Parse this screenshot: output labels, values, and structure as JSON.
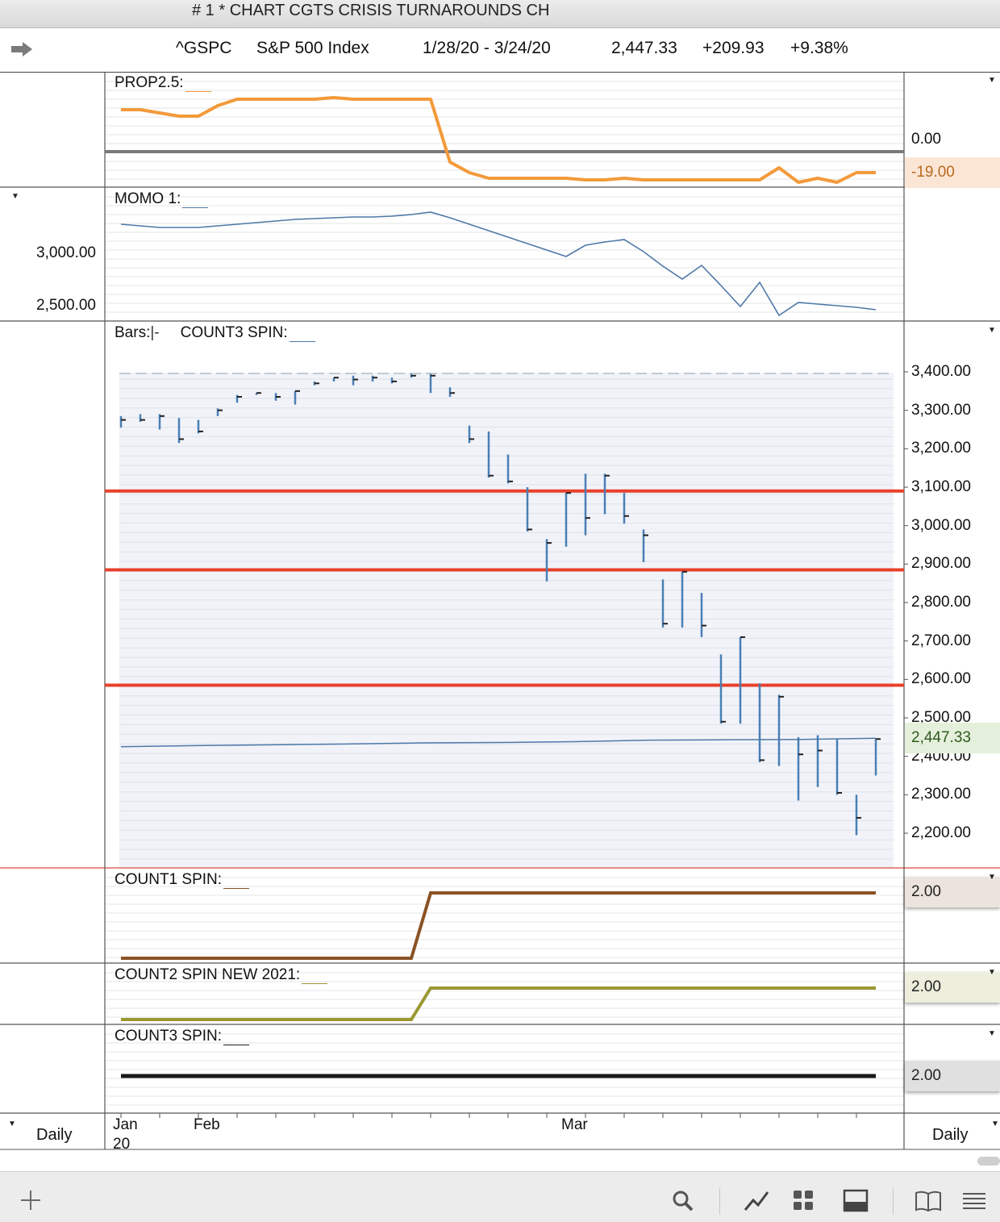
{
  "window": {
    "title": "# 1 * CHART CGTS CRISIS TURNAROUNDS CH"
  },
  "info": {
    "symbol": "^GSPC",
    "name": "S&P 500 Index",
    "range": "1/28/20 - 3/24/20",
    "last": "2,447.33",
    "change": "+209.93",
    "pct": "+9.38%"
  },
  "panels": {
    "prop": {
      "label": "PROP2.5:",
      "axis": "0.00",
      "tag": "-19.00"
    },
    "momo": {
      "label": "MOMO 1:",
      "axis": [
        "3,000.00",
        "2,500.00"
      ]
    },
    "price": {
      "label_bars": "Bars:",
      "bars_sym": "|-",
      "label_count": "COUNT3 SPIN:",
      "tag": "2,447.33",
      "axis": [
        "3,400.00",
        "3,300.00",
        "3,200.00",
        "3,100.00",
        "3,000.00",
        "2,900.00",
        "2,800.00",
        "2,700.00",
        "2,600.00",
        "2,500.00",
        "2,400.00",
        "2,300.00",
        "2,200.00"
      ]
    },
    "count1": {
      "label": "COUNT1 SPIN:",
      "tag": "2.00"
    },
    "count2": {
      "label": "COUNT2 SPIN NEW 2021:",
      "tag": "2.00"
    },
    "count3": {
      "label": "COUNT3 SPIN:",
      "tag": "2.00"
    }
  },
  "footer": {
    "left": "Daily",
    "right": "Daily",
    "months": [
      "Jan",
      "Feb",
      "Mar"
    ],
    "year": "20"
  },
  "colors": {
    "prop": "#f39a3a",
    "momo": "#4f78a8",
    "bar": "#4a7fb5",
    "level": "#e8402a",
    "count1": "#8a5324",
    "count2": "#9a9832",
    "count3": "#1a1a1a"
  },
  "icons": [
    "add-icon",
    "search-icon",
    "chart-line-icon",
    "grid-icon",
    "panel-icon",
    "book-icon",
    "menu-icon"
  ],
  "chart_data": {
    "type": "bar",
    "title": "",
    "xlabel": "",
    "ylabel": "",
    "ylim": [
      2150,
      3420
    ],
    "levels": [
      3090,
      2885,
      2585
    ],
    "series": [
      {
        "type": "ohlc",
        "bars": [
          {
            "h": 3285,
            "l": 3255,
            "c": 3275
          },
          {
            "h": 3290,
            "l": 3270,
            "c": 3275
          },
          {
            "h": 3290,
            "l": 3250,
            "c": 3285
          },
          {
            "h": 3280,
            "l": 3215,
            "c": 3225
          },
          {
            "h": 3275,
            "l": 3240,
            "c": 3245
          },
          {
            "h": 3305,
            "l": 3285,
            "c": 3300
          },
          {
            "h": 3340,
            "l": 3320,
            "c": 3335
          },
          {
            "h": 3345,
            "l": 3340,
            "c": 3345
          },
          {
            "h": 3345,
            "l": 3325,
            "c": 3335
          },
          {
            "h": 3350,
            "l": 3315,
            "c": 3350
          },
          {
            "h": 3375,
            "l": 3365,
            "c": 3370
          },
          {
            "h": 3385,
            "l": 3375,
            "c": 3385
          },
          {
            "h": 3390,
            "l": 3365,
            "c": 3380
          },
          {
            "h": 3390,
            "l": 3375,
            "c": 3385
          },
          {
            "h": 3385,
            "l": 3370,
            "c": 3375
          },
          {
            "h": 3395,
            "l": 3385,
            "c": 3390
          },
          {
            "h": 3395,
            "l": 3345,
            "c": 3390
          },
          {
            "h": 3360,
            "l": 3335,
            "c": 3345
          },
          {
            "h": 3260,
            "l": 3215,
            "c": 3225
          },
          {
            "h": 3245,
            "l": 3125,
            "c": 3130
          },
          {
            "h": 3185,
            "l": 3110,
            "c": 3115
          },
          {
            "h": 3100,
            "l": 2985,
            "c": 2990
          },
          {
            "h": 2965,
            "l": 2855,
            "c": 2955
          },
          {
            "h": 3085,
            "l": 2945,
            "c": 3085
          },
          {
            "h": 3135,
            "l": 2975,
            "c": 3020
          },
          {
            "h": 3135,
            "l": 3030,
            "c": 3130
          },
          {
            "h": 3085,
            "l": 3005,
            "c": 3025
          },
          {
            "h": 2990,
            "l": 2905,
            "c": 2975
          },
          {
            "h": 2860,
            "l": 2735,
            "c": 2745
          },
          {
            "h": 2880,
            "l": 2735,
            "c": 2880
          },
          {
            "h": 2825,
            "l": 2710,
            "c": 2740
          },
          {
            "h": 2665,
            "l": 2485,
            "c": 2490
          },
          {
            "h": 2710,
            "l": 2485,
            "c": 2710
          },
          {
            "h": 2590,
            "l": 2385,
            "c": 2390
          },
          {
            "h": 2560,
            "l": 2375,
            "c": 2555
          },
          {
            "h": 2450,
            "l": 2285,
            "c": 2405
          },
          {
            "h": 2455,
            "l": 2320,
            "c": 2415
          },
          {
            "h": 2445,
            "l": 2300,
            "c": 2305
          },
          {
            "h": 2300,
            "l": 2195,
            "c": 2240
          },
          {
            "h": 2445,
            "l": 2350,
            "c": 2445
          }
        ]
      },
      {
        "name": "COUNT3 SPIN",
        "type": "line",
        "values": [
          2425,
          2428,
          2430,
          2432,
          2435,
          2436,
          2438,
          2442,
          2443,
          2444,
          2447
        ]
      }
    ]
  }
}
